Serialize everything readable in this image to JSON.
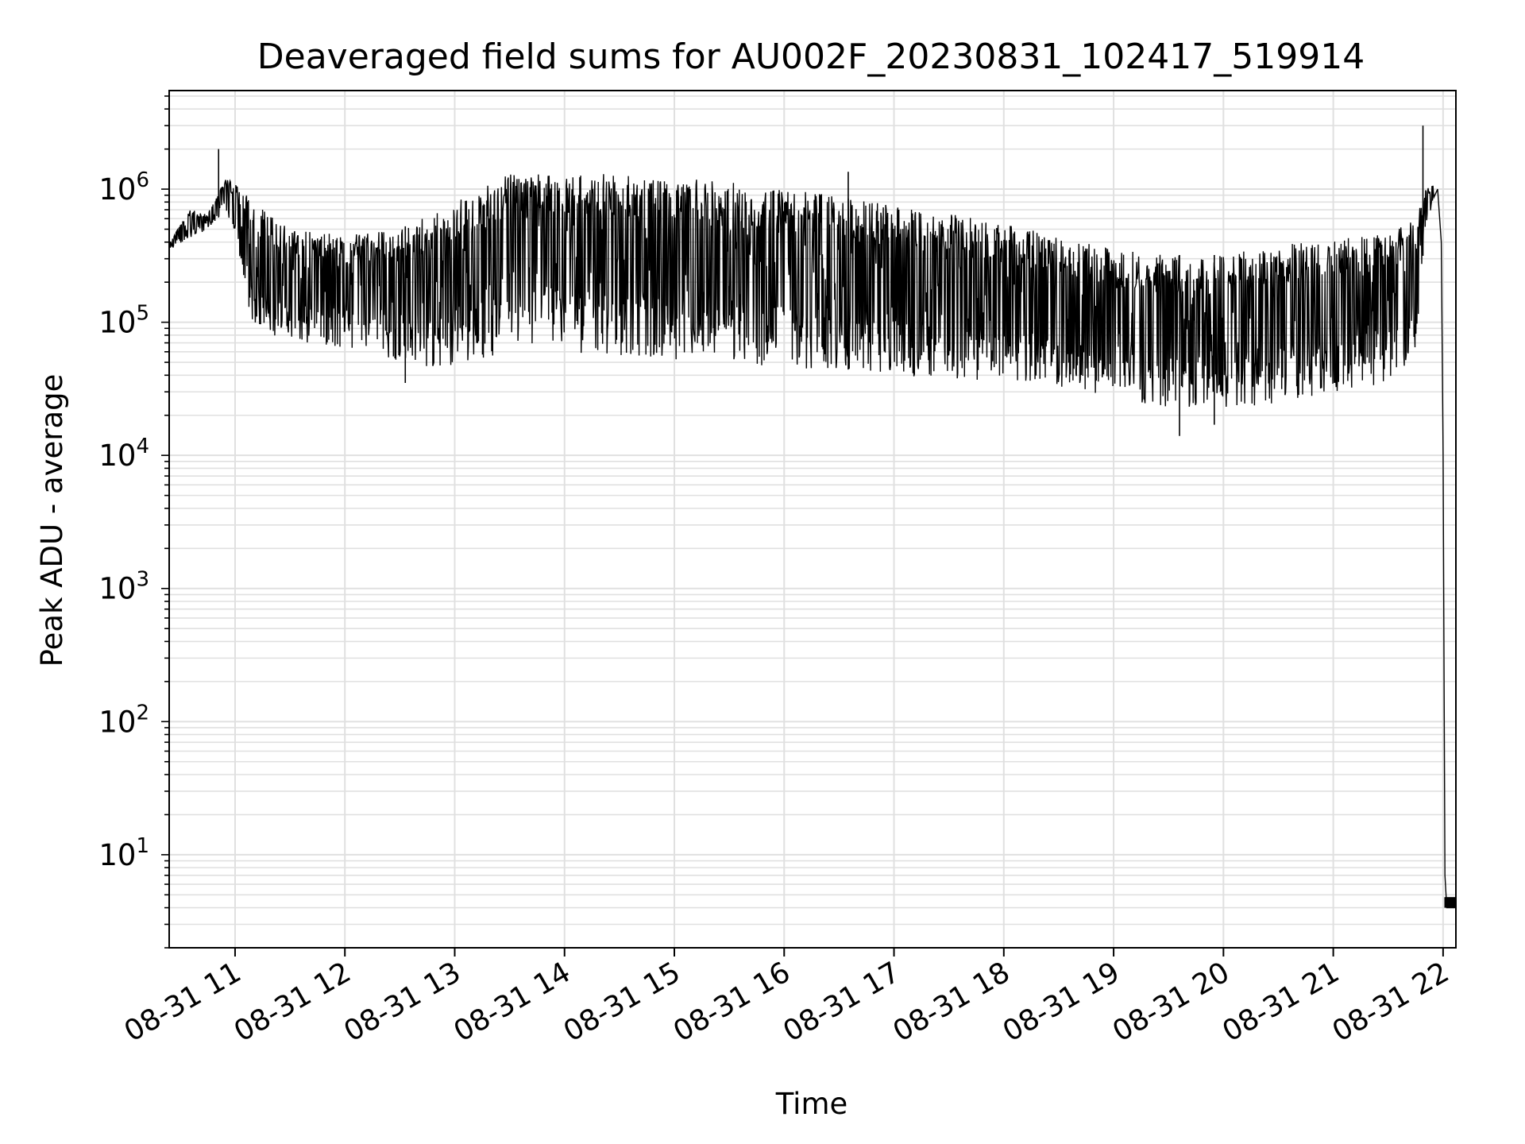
{
  "chart_data": {
    "type": "line",
    "title": "Deaveraged field sums for AU002F_20230831_102417_519914",
    "xlabel": "Time",
    "ylabel": "Peak ADU - average",
    "yscale": "log",
    "grid": true,
    "line_color": "#000000",
    "grid_color": "#e0e0e0",
    "x_ticks": [
      "08-31 11",
      "08-31 12",
      "08-31 13",
      "08-31 14",
      "08-31 15",
      "08-31 16",
      "08-31 17",
      "08-31 18",
      "08-31 19",
      "08-31 20",
      "08-31 21",
      "08-31 22"
    ],
    "y_ticks": [
      {
        "base": "10",
        "exp": "1"
      },
      {
        "base": "10",
        "exp": "2"
      },
      {
        "base": "10",
        "exp": "3"
      },
      {
        "base": "10",
        "exp": "4"
      },
      {
        "base": "10",
        "exp": "5"
      },
      {
        "base": "10",
        "exp": "6"
      }
    ],
    "xlim": [
      "2023-08-31 10:24",
      "2023-08-31 22:07"
    ],
    "ylim": [
      2,
      5500000
    ],
    "series": [
      {
        "envelope": [
          {
            "t": "2023-08-31 10:24",
            "high": 400000,
            "low": 350000
          },
          {
            "t": "2023-08-31 10:35",
            "high": 700000,
            "low": 420000
          },
          {
            "t": "2023-08-31 10:45",
            "high": 650000,
            "low": 500000
          },
          {
            "t": "2023-08-31 10:55",
            "high": 1200000,
            "low": 700000
          },
          {
            "t": "2023-08-31 11:00",
            "high": 1100000,
            "low": 400000
          },
          {
            "t": "2023-08-31 11:10",
            "high": 800000,
            "low": 90000
          },
          {
            "t": "2023-08-31 11:30",
            "high": 500000,
            "low": 70000
          },
          {
            "t": "2023-08-31 12:00",
            "high": 450000,
            "low": 65000
          },
          {
            "t": "2023-08-31 12:30",
            "high": 500000,
            "low": 50000
          },
          {
            "t": "2023-08-31 12:50",
            "high": 700000,
            "low": 45000
          },
          {
            "t": "2023-08-31 13:30",
            "high": 1300000,
            "low": 60000
          },
          {
            "t": "2023-08-31 14:00",
            "high": 1300000,
            "low": 60000
          },
          {
            "t": "2023-08-31 14:30",
            "high": 1300000,
            "low": 55000
          },
          {
            "t": "2023-08-31 15:00",
            "high": 1200000,
            "low": 50000
          },
          {
            "t": "2023-08-31 15:30",
            "high": 1150000,
            "low": 50000
          },
          {
            "t": "2023-08-31 16:00",
            "high": 1000000,
            "low": 45000
          },
          {
            "t": "2023-08-31 16:30",
            "high": 900000,
            "low": 45000
          },
          {
            "t": "2023-08-31 17:00",
            "high": 750000,
            "low": 40000
          },
          {
            "t": "2023-08-31 17:30",
            "high": 650000,
            "low": 38000
          },
          {
            "t": "2023-08-31 18:00",
            "high": 550000,
            "low": 36000
          },
          {
            "t": "2023-08-31 18:30",
            "high": 450000,
            "low": 32000
          },
          {
            "t": "2023-08-31 19:00",
            "high": 350000,
            "low": 28000
          },
          {
            "t": "2023-08-31 19:30",
            "high": 320000,
            "low": 22000
          },
          {
            "t": "2023-08-31 20:00",
            "high": 320000,
            "low": 22000
          },
          {
            "t": "2023-08-31 20:30",
            "high": 380000,
            "low": 25000
          },
          {
            "t": "2023-08-31 21:00",
            "high": 420000,
            "low": 30000
          },
          {
            "t": "2023-08-31 21:30",
            "high": 480000,
            "low": 35000
          },
          {
            "t": "2023-08-31 21:45",
            "high": 600000,
            "low": 50000
          },
          {
            "t": "2023-08-31 21:50",
            "high": 1000000,
            "low": 500000
          },
          {
            "t": "2023-08-31 21:55",
            "high": 1100000,
            "low": 800000
          }
        ],
        "spikes": [
          {
            "t": "2023-08-31 10:51",
            "value": 2000000
          },
          {
            "t": "2023-08-31 21:49",
            "value": 3000000
          },
          {
            "t": "2023-08-31 16:35",
            "value": 1350000
          }
        ],
        "dips": [
          {
            "t": "2023-08-31 19:36",
            "value": 14000
          },
          {
            "t": "2023-08-31 19:55",
            "value": 17000
          },
          {
            "t": "2023-08-31 12:33",
            "value": 35000
          }
        ],
        "tail": [
          {
            "t": "2023-08-31 21:57",
            "value": 1000000
          },
          {
            "t": "2023-08-31 21:59",
            "value": 400000
          },
          {
            "t": "2023-08-31 22:00",
            "value": 10000
          },
          {
            "t": "2023-08-31 22:01",
            "value": 7
          },
          {
            "t": "2023-08-31 22:02",
            "value": 4
          },
          {
            "t": "2023-08-31 22:07",
            "value": 4
          }
        ]
      }
    ]
  }
}
